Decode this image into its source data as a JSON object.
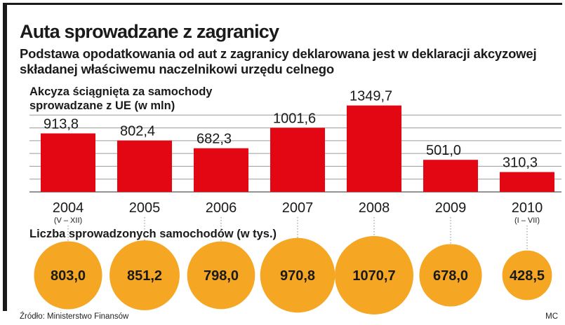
{
  "header": {
    "title": "Auta sprowadzane z zagranicy",
    "subtitle": "Podstawa opodatkowania od aut z zagranicy deklarowana jest w deklaracji akcyzowej składanej właściwemu naczelnikowi urzędu celnego"
  },
  "chart_data": [
    {
      "type": "bar",
      "title": "Akcyza ściągnięta za samochody sprowadzane z UE (w mln)",
      "categories": [
        "2004",
        "2005",
        "2006",
        "2007",
        "2008",
        "2009",
        "2010"
      ],
      "category_notes": [
        "(V – XII)",
        "",
        "",
        "",
        "",
        "",
        "(I – VII)"
      ],
      "values": [
        913.8,
        802.4,
        682.3,
        1001.6,
        1349.7,
        501.0,
        310.3
      ],
      "value_labels": [
        "913,8",
        "802,4",
        "682,3",
        "1001,6",
        "1349,7",
        "501,0",
        "310,3"
      ],
      "ylim": [
        0,
        1400
      ],
      "grid": true,
      "color": "#e30613"
    },
    {
      "type": "bubble",
      "title": "Liczba sprowadzonych samochodów (w tys.)",
      "categories": [
        "2004",
        "2005",
        "2006",
        "2007",
        "2008",
        "2009",
        "2010"
      ],
      "values": [
        803.0,
        851.2,
        798.0,
        970.8,
        1070.7,
        678.0,
        428.5
      ],
      "value_labels": [
        "803,0",
        "851,2",
        "798,0",
        "970,8",
        "1070,7",
        "678,0",
        "428,5"
      ],
      "color": "#f5a623"
    }
  ],
  "footer": {
    "source": "Źródło: Ministerstwo Finansów",
    "credit": "MC"
  }
}
